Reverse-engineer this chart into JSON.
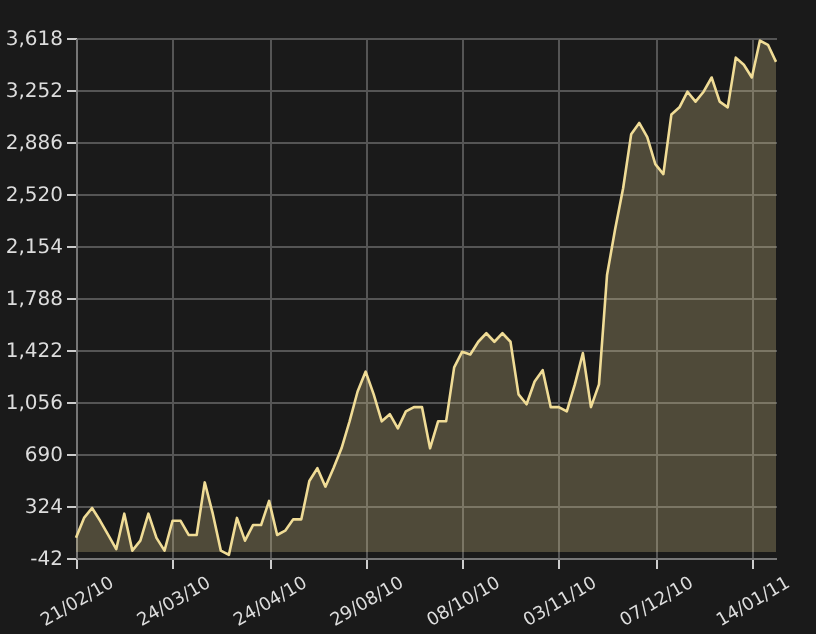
{
  "chart_data": {
    "type": "area",
    "categories": [
      "21/02/10",
      null,
      null,
      null,
      null,
      null,
      null,
      null,
      null,
      null,
      null,
      null,
      "24/03/10",
      null,
      null,
      null,
      null,
      null,
      null,
      null,
      null,
      null,
      null,
      null,
      "24/04/10",
      null,
      null,
      null,
      null,
      null,
      null,
      null,
      null,
      null,
      null,
      null,
      "29/08/10",
      null,
      null,
      null,
      null,
      null,
      null,
      null,
      null,
      null,
      null,
      null,
      "08/10/10",
      null,
      null,
      null,
      null,
      null,
      null,
      null,
      null,
      null,
      null,
      null,
      "03/11/10",
      null,
      null,
      null,
      null,
      null,
      null,
      null,
      null,
      null,
      null,
      null,
      "07/12/10",
      null,
      null,
      null,
      null,
      null,
      null,
      null,
      null,
      null,
      null,
      null,
      "14/01/11",
      null,
      null,
      null
    ],
    "series": [
      {
        "color": "#f0dc96",
        "values": [
          100,
          240,
          310,
          220,
          120,
          20,
          270,
          10,
          80,
          270,
          100,
          10,
          220,
          220,
          120,
          120,
          490,
          270,
          10,
          -20,
          240,
          80,
          190,
          190,
          360,
          120,
          150,
          230,
          230,
          500,
          590,
          460,
          590,
          730,
          920,
          1130,
          1270,
          1110,
          920,
          970,
          870,
          990,
          1020,
          1020,
          730,
          920,
          920,
          1300,
          1410,
          1390,
          1480,
          1540,
          1480,
          1540,
          1480,
          1110,
          1040,
          1200,
          1280,
          1020,
          1020,
          990,
          1180,
          1400,
          1020,
          1180,
          1950,
          2270,
          2560,
          2940,
          3020,
          2920,
          2730,
          2660,
          3080,
          3130,
          3240,
          3170,
          3240,
          3340,
          3170,
          3130,
          3480,
          3430,
          3340,
          3600,
          3570,
          3450
        ]
      }
    ],
    "ylim": [
      -42,
      3618
    ],
    "yticks": [
      -42,
      324,
      690,
      {
        "value": 1056,
        "label": "1,056"
      },
      {
        "value": 1422,
        "label": "1,422"
      },
      {
        "value": 1788,
        "label": "1,788"
      },
      {
        "value": 2154,
        "label": "2,154"
      },
      {
        "value": 2520,
        "label": "2,520"
      },
      {
        "value": 2886,
        "label": "2,886"
      },
      {
        "value": 3252,
        "label": "3,252"
      },
      {
        "value": 3618,
        "label": "3,618"
      }
    ],
    "grid": true
  }
}
